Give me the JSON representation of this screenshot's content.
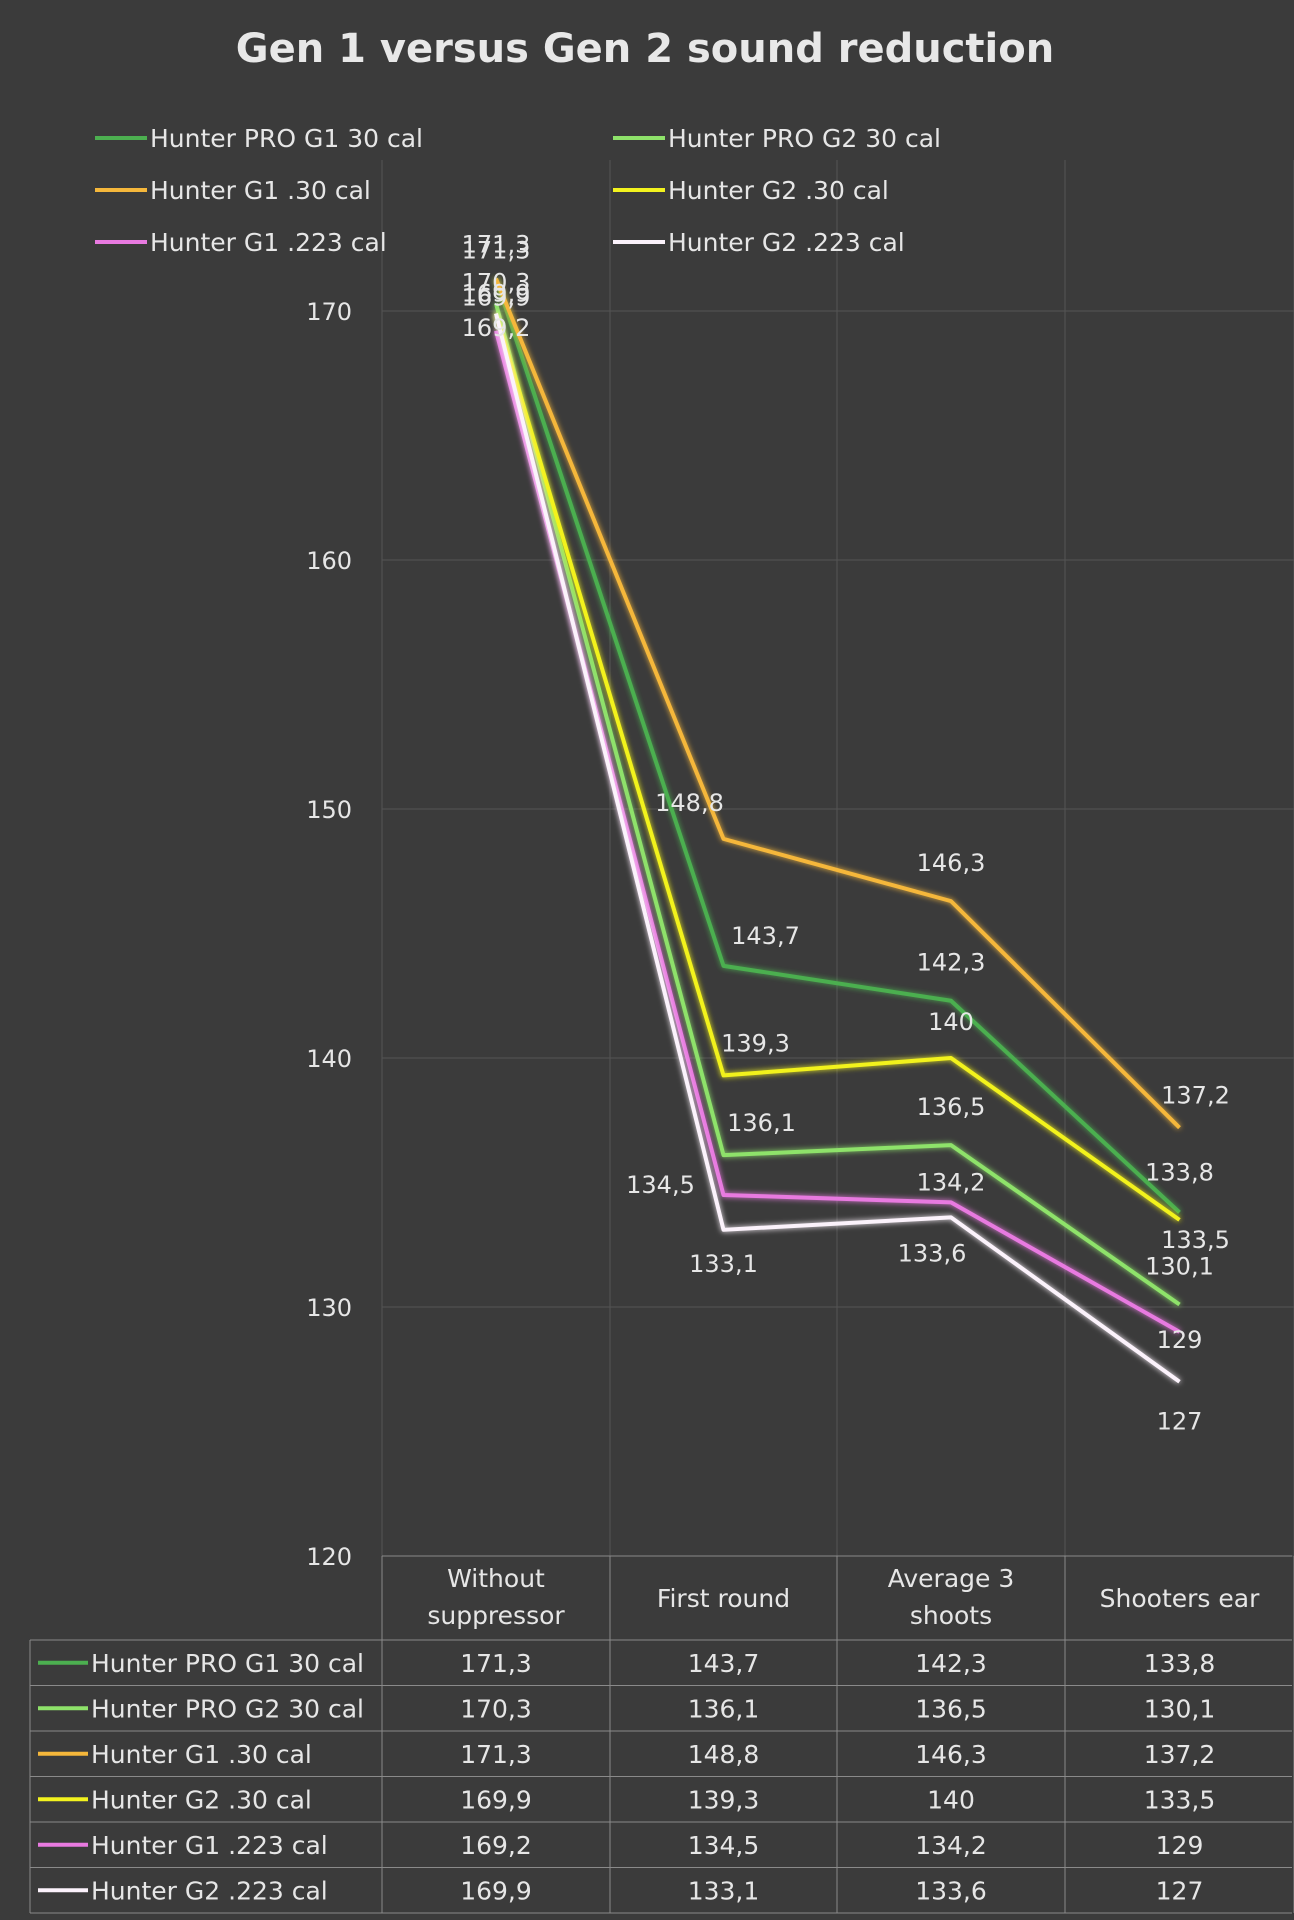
{
  "chart_data": {
    "type": "line",
    "title": "Gen 1 versus Gen 2 sound reduction",
    "categories": [
      "Without suppressor",
      "First round",
      "Average 3 shoots",
      "Shooters ear"
    ],
    "ylim": [
      120,
      175
    ],
    "yticks": [
      120,
      130,
      140,
      150,
      160,
      170
    ],
    "grid": true,
    "legend_position": "top",
    "data_table": true,
    "decimal_separator": ",",
    "series": [
      {
        "name": "Hunter PRO G1 30 cal",
        "color": "#4caf50",
        "values": [
          171.3,
          143.7,
          142.3,
          133.8
        ]
      },
      {
        "name": "Hunter PRO G2 30 cal",
        "color": "#8ee26a",
        "values": [
          170.3,
          136.1,
          136.5,
          130.1
        ]
      },
      {
        "name": "Hunter G1 .30 cal",
        "color": "#f5b73b",
        "values": [
          171.3,
          148.8,
          146.3,
          137.2
        ]
      },
      {
        "name": "Hunter G2 .30 cal",
        "color": "#f2f21e",
        "values": [
          169.9,
          139.3,
          140,
          133.5
        ]
      },
      {
        "name": "Hunter G1 .223 cal",
        "color": "#e87ae0",
        "values": [
          169.2,
          134.5,
          134.2,
          129
        ]
      },
      {
        "name": "Hunter G2 .223 cal",
        "color": "#fbf2fb",
        "values": [
          169.9,
          133.1,
          133.6,
          127
        ]
      }
    ]
  }
}
